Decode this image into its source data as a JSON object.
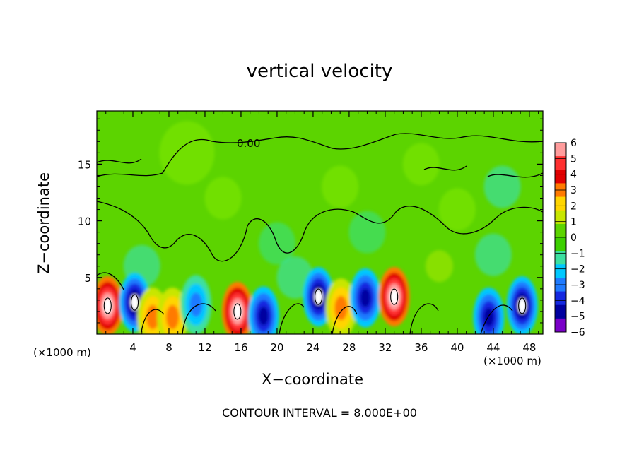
{
  "chart_data": {
    "type": "heatmap",
    "title": "vertical velocity",
    "xlabel": "X−coordinate",
    "ylabel": "Z−coordinate",
    "x_unit_label": "(×1000 m)",
    "x_ticks": [
      4,
      8,
      12,
      16,
      20,
      24,
      28,
      32,
      36,
      40,
      44,
      48
    ],
    "y_ticks": [
      5,
      10,
      15
    ],
    "xlim": [
      0,
      49.5
    ],
    "ylim": [
      0,
      19.7
    ],
    "contour_label": "0.00",
    "footer": "CONTOUR INTERVAL = 8.000E+00",
    "colorbar": {
      "labels": [
        "6",
        "5",
        "4",
        "3",
        "2",
        "1",
        "0",
        "−1",
        "−2",
        "−3",
        "−4",
        "−5",
        "−6"
      ],
      "colors": [
        "#ff9c9c",
        "#ff3030",
        "#e00000",
        "#ff7a00",
        "#ffd500",
        "#c8e600",
        "#5cd400",
        "#3cd000",
        "#3ce0a0",
        "#00c8ff",
        "#1e7aff",
        "#1428e0",
        "#0000a0",
        "#7a00c8"
      ]
    },
    "features": [
      {
        "x": 1.2,
        "z": 2.5,
        "w": 6,
        "sign": "positive"
      },
      {
        "x": 4.2,
        "z": 2.8,
        "w": -5.5,
        "sign": "negative"
      },
      {
        "x": 6.2,
        "z": 1.5,
        "w": 3,
        "sign": "positive"
      },
      {
        "x": 8.4,
        "z": 1.5,
        "w": 3,
        "sign": "positive"
      },
      {
        "x": 11,
        "z": 2.6,
        "w": -3.5,
        "sign": "negative"
      },
      {
        "x": 15.6,
        "z": 2.0,
        "w": 6,
        "sign": "positive"
      },
      {
        "x": 18.5,
        "z": 1.6,
        "w": -4,
        "sign": "negative"
      },
      {
        "x": 24.6,
        "z": 3.3,
        "w": -5.8,
        "sign": "negative"
      },
      {
        "x": 27.1,
        "z": 2.3,
        "w": 3,
        "sign": "positive"
      },
      {
        "x": 29.8,
        "z": 3.2,
        "w": -4,
        "sign": "negative"
      },
      {
        "x": 33,
        "z": 3.3,
        "w": 5.5,
        "sign": "positive"
      },
      {
        "x": 43.5,
        "z": 1.5,
        "w": -4,
        "sign": "negative"
      },
      {
        "x": 47.2,
        "z": 2.5,
        "w": -5.5,
        "sign": "negative"
      }
    ]
  }
}
